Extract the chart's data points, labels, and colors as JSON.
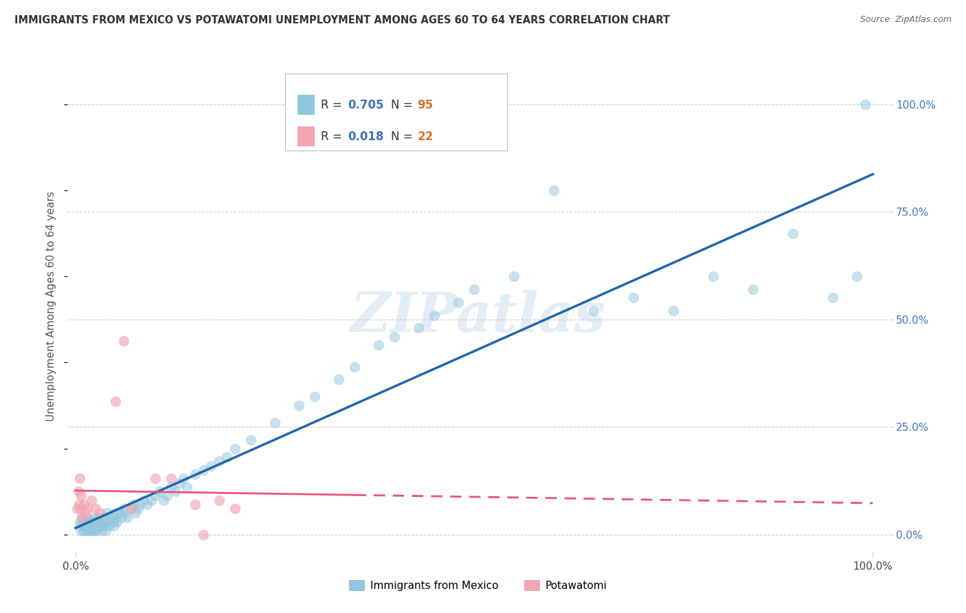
{
  "title": "IMMIGRANTS FROM MEXICO VS POTAWATOMI UNEMPLOYMENT AMONG AGES 60 TO 64 YEARS CORRELATION CHART",
  "source": "Source: ZipAtlas.com",
  "ylabel": "Unemployment Among Ages 60 to 64 years",
  "blue_color": "#92c5de",
  "blue_line_color": "#2166ac",
  "pink_color": "#f4a5b2",
  "pink_line_color": "#e8537a",
  "r_blue": 0.705,
  "n_blue": 95,
  "r_pink": 0.018,
  "n_pink": 22,
  "legend_label_blue": "Immigrants from Mexico",
  "legend_label_pink": "Potawatomi",
  "watermark": "ZIPatlas",
  "title_color": "#333333",
  "source_color": "#666666",
  "right_tick_color": "#4472c4",
  "n_color": "#e07030",
  "grid_color": "#cccccc",
  "blue_x": [
    0.005,
    0.005,
    0.007,
    0.008,
    0.01,
    0.01,
    0.01,
    0.012,
    0.013,
    0.015,
    0.015,
    0.015,
    0.016,
    0.017,
    0.018,
    0.019,
    0.02,
    0.02,
    0.02,
    0.022,
    0.023,
    0.024,
    0.025,
    0.025,
    0.026,
    0.027,
    0.028,
    0.03,
    0.03,
    0.032,
    0.033,
    0.035,
    0.036,
    0.037,
    0.038,
    0.04,
    0.04,
    0.042,
    0.045,
    0.047,
    0.048,
    0.05,
    0.05,
    0.052,
    0.055,
    0.058,
    0.06,
    0.062,
    0.065,
    0.07,
    0.072,
    0.075,
    0.078,
    0.08,
    0.085,
    0.09,
    0.095,
    0.1,
    0.105,
    0.11,
    0.115,
    0.12,
    0.125,
    0.13,
    0.135,
    0.14,
    0.15,
    0.16,
    0.17,
    0.18,
    0.19,
    0.2,
    0.22,
    0.25,
    0.28,
    0.3,
    0.33,
    0.35,
    0.38,
    0.4,
    0.43,
    0.45,
    0.48,
    0.5,
    0.55,
    0.6,
    0.65,
    0.7,
    0.75,
    0.8,
    0.85,
    0.9,
    0.95,
    0.98,
    0.99
  ],
  "blue_y": [
    0.02,
    0.03,
    0.01,
    0.04,
    0.01,
    0.02,
    0.03,
    0.02,
    0.01,
    0.03,
    0.04,
    0.02,
    0.01,
    0.03,
    0.02,
    0.01,
    0.01,
    0.02,
    0.03,
    0.02,
    0.04,
    0.01,
    0.02,
    0.03,
    0.01,
    0.02,
    0.04,
    0.02,
    0.03,
    0.02,
    0.01,
    0.03,
    0.04,
    0.02,
    0.01,
    0.03,
    0.05,
    0.02,
    0.04,
    0.03,
    0.02,
    0.05,
    0.04,
    0.03,
    0.05,
    0.04,
    0.06,
    0.05,
    0.04,
    0.06,
    0.07,
    0.05,
    0.06,
    0.07,
    0.08,
    0.07,
    0.08,
    0.09,
    0.1,
    0.08,
    0.09,
    0.11,
    0.1,
    0.12,
    0.13,
    0.11,
    0.14,
    0.15,
    0.16,
    0.17,
    0.18,
    0.2,
    0.22,
    0.26,
    0.3,
    0.32,
    0.36,
    0.39,
    0.44,
    0.46,
    0.48,
    0.51,
    0.54,
    0.57,
    0.6,
    0.8,
    0.52,
    0.55,
    0.52,
    0.6,
    0.57,
    0.7,
    0.55,
    0.6,
    1.0
  ],
  "pink_x": [
    0.002,
    0.003,
    0.004,
    0.005,
    0.006,
    0.007,
    0.008,
    0.01,
    0.012,
    0.015,
    0.02,
    0.025,
    0.03,
    0.05,
    0.06,
    0.07,
    0.1,
    0.12,
    0.15,
    0.16,
    0.18,
    0.2
  ],
  "pink_y": [
    0.06,
    0.1,
    0.07,
    0.13,
    0.06,
    0.09,
    0.04,
    0.07,
    0.05,
    0.06,
    0.08,
    0.06,
    0.05,
    0.31,
    0.45,
    0.06,
    0.13,
    0.13,
    0.07,
    0.0,
    0.08,
    0.06
  ]
}
